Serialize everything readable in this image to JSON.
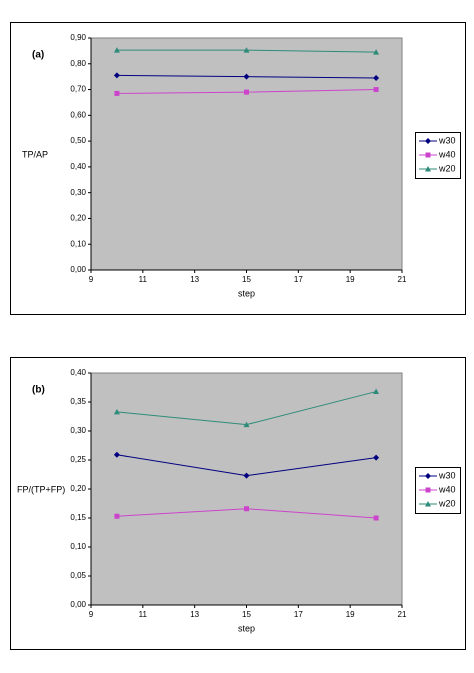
{
  "chart_data": [
    {
      "type": "line",
      "title": "(a)",
      "ylabel": "TP/AP",
      "xlabel": "step",
      "x": [
        10,
        15,
        20
      ],
      "xlim": [
        9,
        21
      ],
      "xticks": [
        9,
        11,
        13,
        15,
        17,
        19,
        21
      ],
      "ylim": [
        0,
        0.9
      ],
      "yticks": [
        {
          "value": 0,
          "label": "0,00"
        },
        {
          "value": 0.1,
          "label": "0,10"
        },
        {
          "value": 0.2,
          "label": "0,20"
        },
        {
          "value": 0.3,
          "label": "0,30"
        },
        {
          "value": 0.4,
          "label": "0,40"
        },
        {
          "value": 0.5,
          "label": "0,50"
        },
        {
          "value": 0.6,
          "label": "0,60"
        },
        {
          "value": 0.7,
          "label": "0,70"
        },
        {
          "value": 0.8,
          "label": "0,80"
        },
        {
          "value": 0.9,
          "label": "0,90"
        }
      ],
      "series": [
        {
          "name": "w30",
          "color": "#000080",
          "marker": "diamond",
          "values": [
            0.755,
            0.75,
            0.745
          ]
        },
        {
          "name": "w40",
          "color": "#cc44cc",
          "marker": "square",
          "values": [
            0.685,
            0.69,
            0.7
          ]
        },
        {
          "name": "w20",
          "color": "#2e8b7a",
          "marker": "triangle",
          "values": [
            0.853,
            0.853,
            0.845
          ]
        }
      ]
    },
    {
      "type": "line",
      "title": "(b)",
      "ylabel": "FP/(TP+FP)",
      "xlabel": "step",
      "x": [
        10,
        15,
        20
      ],
      "xlim": [
        9,
        21
      ],
      "xticks": [
        9,
        11,
        13,
        15,
        17,
        19,
        21
      ],
      "ylim": [
        0,
        0.4
      ],
      "yticks": [
        {
          "value": 0,
          "label": "0,00"
        },
        {
          "value": 0.05,
          "label": "0,05"
        },
        {
          "value": 0.1,
          "label": "0,10"
        },
        {
          "value": 0.15,
          "label": "0,15"
        },
        {
          "value": 0.2,
          "label": "0,20"
        },
        {
          "value": 0.25,
          "label": "0,25"
        },
        {
          "value": 0.3,
          "label": "0,30"
        },
        {
          "value": 0.35,
          "label": "0,35"
        },
        {
          "value": 0.4,
          "label": "0,40"
        }
      ],
      "series": [
        {
          "name": "w30",
          "color": "#000080",
          "marker": "diamond",
          "values": [
            0.259,
            0.223,
            0.254
          ]
        },
        {
          "name": "w40",
          "color": "#cc44cc",
          "marker": "square",
          "values": [
            0.153,
            0.166,
            0.15
          ]
        },
        {
          "name": "w20",
          "color": "#2e8b7a",
          "marker": "triangle",
          "values": [
            0.333,
            0.311,
            0.368
          ]
        }
      ]
    }
  ]
}
